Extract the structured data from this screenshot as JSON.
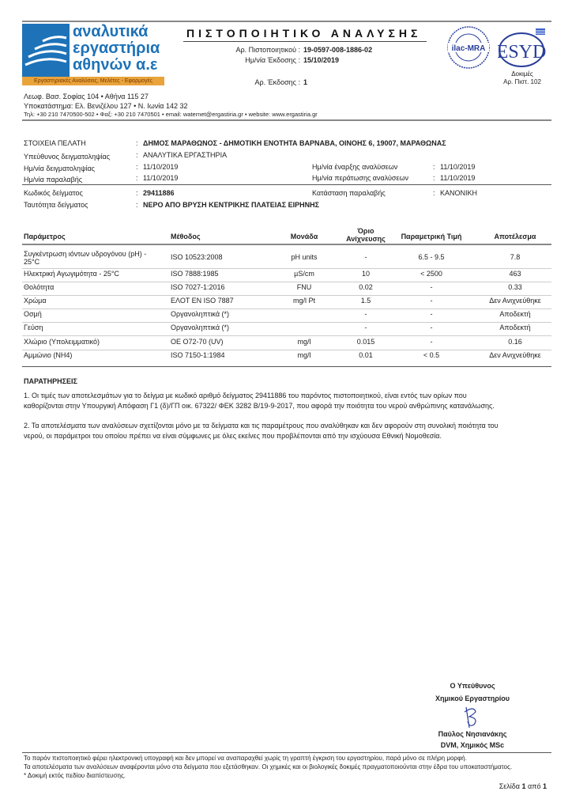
{
  "header": {
    "logo_text": [
      "αναλυτικά",
      "εργαστήρια",
      "αθηνών α.ε"
    ],
    "tagline": "Εργαστηριακές Αναλύσεις, Μελέτες - Εφαρμογές",
    "title": "ΠΙΣΤΟΠΟΙΗΤΙΚΟ ΑΝΑΛΥΣΗΣ",
    "cert_no_label": "Αρ. Πιστοποιητικού :",
    "cert_no": "19-0597-008-1886-02",
    "issue_date_label": "Ημ/νία Έκδοσης :",
    "issue_date": "15/10/2019",
    "edition_label": "Αρ. Έκδοσης :",
    "edition": "1",
    "ilac_logo_text": "ilac-MRA",
    "esyd_logo_text": "ESYD",
    "accreditation_line1": "Δοκιμές",
    "accreditation_line2": "Αρ. Πιστ. 102",
    "address1": "Λεωφ. Βασ. Σοφίας 104 • Αθήνα 115 27",
    "address2": "Υποκατάστημα: Ελ. Βενιζέλου 127 • Ν. Ιωνία 142 32",
    "contact": "Τηλ: +30 210 7470500-502 • Φαξ: +30 210 7470501 • email: waternet@ergastiria.gr • website: www.ergastiria.gr"
  },
  "client": {
    "client_label": "ΣΤΟΙΧΕΙΑ ΠΕΛΑΤΗ",
    "client": "ΔΗΜΟΣ ΜΑΡΑΘΩΝΟΣ - ΔΗΜΟΤΙΚΗ ΕΝΟΤΗΤΑ ΒΑΡΝΑΒΑ, ΟΙΝΟΗΣ 6, 19007, ΜΑΡΑΘΩΝΑΣ",
    "sampler_label": "Υπεύθυνος δειγματοληψίας",
    "sampler": "ΑΝΑΛΥΤΙΚΑ ΕΡΓΑΣΤΗΡΙΑ",
    "sampling_date_label": "Ημ/νία δειγματοληψίας",
    "sampling_date": "11/10/2019",
    "receipt_date_label": "Ημ/νία παραλαβής",
    "receipt_date": "11/10/2019",
    "start_label": "Ημ/νία έναρξης αναλύσεων",
    "start": "11/10/2019",
    "end_label": "Ημ/νία περάτωσης αναλύσεων",
    "end": "11/10/2019",
    "sample_code_label": "Κωδικός δείγματος",
    "sample_code": "29411886",
    "receipt_status_label": "Κατάσταση παραλαβής",
    "receipt_status": "ΚΑΝΟΝΙΚΗ",
    "sample_id_label": "Ταυτότητα δείγματος",
    "sample_id": "ΝΕΡΟ ΑΠΟ ΒΡΥΣΗ ΚΕΝΤΡΙΚΗΣ ΠΛΑΤΕΙΑΣ ΕΙΡΗΝΗΣ",
    "colon": ":"
  },
  "table": {
    "headers": [
      "Παράμετρος",
      "Μέθοδος",
      "Μονάδα",
      "Όριο",
      "Ανίχνευσης",
      "Παραμετρική Τιμή",
      "Αποτέλεσμα"
    ],
    "rows": [
      [
        "Συγκέντρωση ιόντων υδρογόνου (pH) -",
        "ISO 10523:2008",
        "pH units",
        "-",
        "6.5 - 9.5",
        "7.8",
        "25°C"
      ],
      [
        "Ηλεκτρική Αγωγιμότητα - 25°C",
        "ISO 7888:1985",
        "µS/cm",
        "10",
        "< 2500",
        "463"
      ],
      [
        "Θολότητα",
        "ISO 7027-1:2016",
        "FNU",
        "0.02",
        "-",
        "0.33"
      ],
      [
        "Χρώμα",
        "ΕΛΟΤ ΕΝ ISO 7887",
        "mg/l Pt",
        "1.5",
        "-",
        "Δεν Ανιχνεύθηκε"
      ],
      [
        "Οσμή",
        "Οργανοληπτικά (*)",
        "",
        "-",
        "-",
        "Αποδεκτή"
      ],
      [
        "Γεύση",
        "Οργανοληπτικά (*)",
        "",
        "-",
        "-",
        "Αποδεκτή"
      ],
      [
        "Χλώριο (Υπολειμματικό)",
        "ΟΕ Ο72-70 (UV)",
        "mg/l",
        "0.015",
        "-",
        "0.16"
      ],
      [
        "Αμμώνιο (NH4)",
        "ISO 7150-1:1984",
        "mg/l",
        "0.01",
        "< 0.5",
        "Δεν Ανιχνεύθηκε"
      ]
    ]
  },
  "remarks": {
    "title": "ΠΑΡΑΤΗΡΗΣΕΙΣ",
    "p1_l1": "1. Οι τιμές των αποτελεσμάτων για το δείγμα με κωδικό αριθμό δείγματος 29411886 του παρόντος πιστοποιητικού, είναι εντός των ορίων που",
    "p1_l2": "καθορίζονται στην Υπουργική Απόφαση Γ1 (δ)/ΓΠ οικ. 67322/ ΦΕΚ 3282 Β/19-9-2017, που αφορά την ποιότητα του νερού ανθρώπινης κατανάλωσης.",
    "p2_l1": "2. Τα αποτελέσματα των αναλύσεων σχετίζονται μόνο με τα δείγματα και τις παραμέτρους που αναλύθηκαν και δεν αφορούν στη συνολική ποιότητα του",
    "p2_l2": "νερού, οι παράμετροι του οποίου πρέπει να είναι σύμφωνες με όλες εκείνες που προβλέπονται από την ισχύουσα Εθνική Νομοθεσία."
  },
  "signature": {
    "role1": "Ο Υπεύθυνος",
    "role2": "Χημικού Εργαστηρίου",
    "name": "Παύλος Νησιανάκης",
    "title": "DVM, Χημικός MSc"
  },
  "footer": {
    "l1": "Το παρόν πιστοποιητικό φέρει ηλεκτρονική υπογραφή και δεν μπορεί να αναπαραχθεί χωρίς τη γραπτή έγκριση του εργαστηρίου, παρά μόνο σε πλήρη μορφή.",
    "l2": "Τα αποτελέσματα των αναλύσεων αναφέρονται μόνο στα δείγματα που εξετάσθηκαν. Οι χημικές και οι βιολογικές δοκιμές πραγματοποιούνται στην έδρα του υποκαταστήματος.",
    "l3": "* Δοκιμή εκτός πεδίου διαπίστευσης.",
    "page_label": "Σελίδα",
    "page": "1",
    "of": "από",
    "total": "1"
  },
  "colors": {
    "brand_blue": "#1d72b8",
    "brand_orange": "#e9a33b"
  }
}
